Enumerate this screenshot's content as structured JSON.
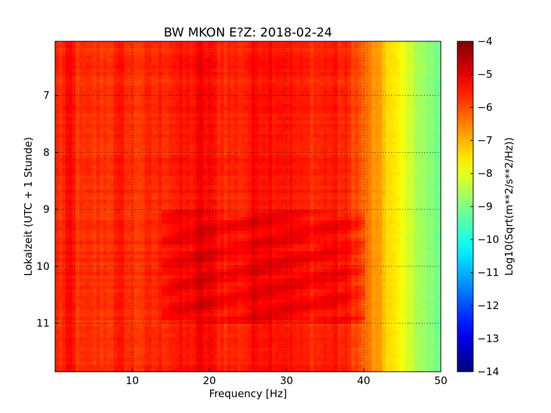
{
  "chart_data": {
    "type": "heatmap",
    "title": "BW MKON E?Z: 2018-02-24",
    "xlabel": "Frequency [Hz]",
    "ylabel": "Lokalzeit (UTC + 1 Stunde)",
    "xlim": [
      0,
      50
    ],
    "ylim": [
      6.05,
      11.85
    ],
    "y_inverted": true,
    "x_ticks": [
      10,
      20,
      30,
      40,
      50
    ],
    "y_ticks": [
      7,
      8,
      9,
      10,
      11
    ],
    "grid": true,
    "colormap": "jet",
    "colorbar": {
      "label": "Log10(Sqrt(m**2/s**2/Hz))",
      "range": [
        -14,
        -4
      ],
      "ticks": [
        -4,
        -5,
        -6,
        -7,
        -8,
        -9,
        -10,
        -11,
        -12,
        -13,
        -14
      ]
    },
    "spectrum_profile": {
      "frequency": [
        0,
        1,
        2,
        3,
        5,
        7,
        9,
        10,
        12,
        14,
        15,
        17,
        18,
        19,
        20,
        21,
        22,
        23,
        24,
        25,
        26,
        28,
        30,
        32,
        34,
        36,
        37,
        38,
        39,
        40,
        41,
        42,
        43,
        44,
        45,
        46,
        47,
        48,
        49,
        50
      ],
      "level": [
        -5.6,
        -5.7,
        -5.3,
        -5.8,
        -5.75,
        -5.7,
        -5.5,
        -5.8,
        -5.7,
        -5.6,
        -5.5,
        -5.5,
        -5.4,
        -5.2,
        -5.4,
        -5.5,
        -5.6,
        -5.6,
        -5.6,
        -5.5,
        -5.3,
        -5.3,
        -5.4,
        -5.6,
        -5.6,
        -5.5,
        -5.6,
        -5.7,
        -5.9,
        -6.3,
        -6.6,
        -6.9,
        -7.3,
        -7.6,
        -7.9,
        -8.2,
        -8.5,
        -8.8,
        -9.0,
        -9.2
      ]
    },
    "active_window": {
      "start": 9.0,
      "end": 11.0,
      "freq_range": [
        14,
        40
      ],
      "extra_level": 0.5
    }
  }
}
